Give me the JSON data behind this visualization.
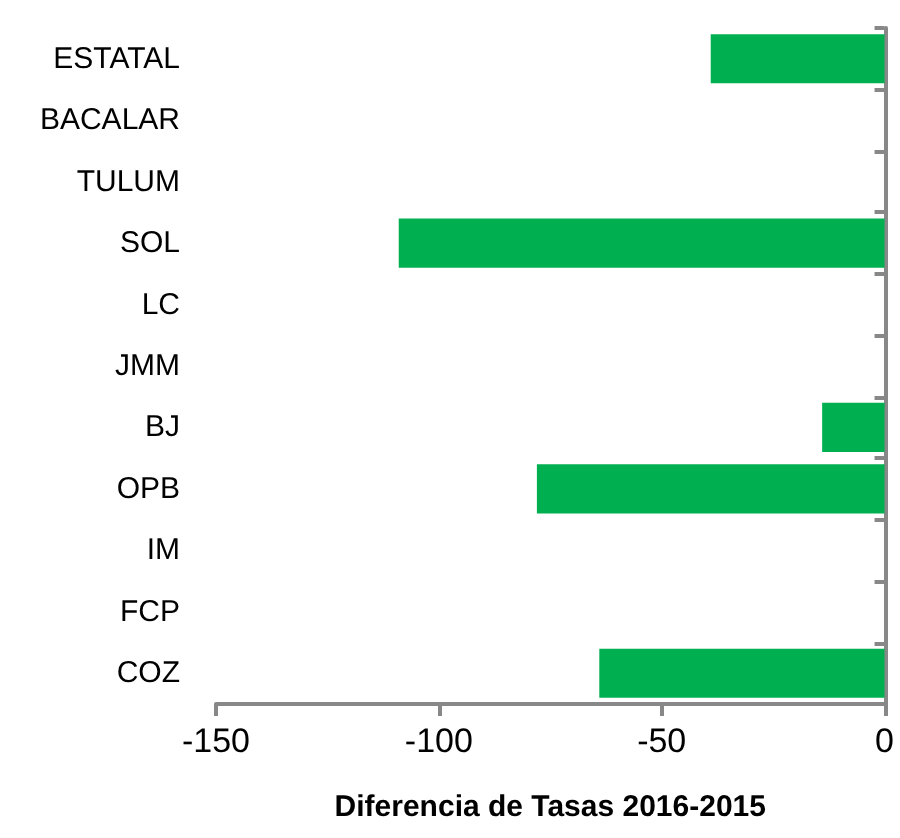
{
  "chart_data": {
    "type": "bar",
    "orientation": "horizontal",
    "xlabel": "Diferencia de Tasas 2016-2015",
    "categories": [
      "ESTATAL",
      "BACALAR",
      "TULUM",
      "SOL",
      "LC",
      "JMM",
      "BJ",
      "OPB",
      "IM",
      "FCP",
      "COZ"
    ],
    "values": [
      -39,
      0,
      0,
      -109,
      0,
      0,
      -14,
      -78,
      0,
      0,
      -64
    ],
    "color": "#00b050",
    "xlim": [
      -150,
      0
    ],
    "xticks": [
      -150,
      -100,
      -50,
      0
    ],
    "grid": false
  }
}
